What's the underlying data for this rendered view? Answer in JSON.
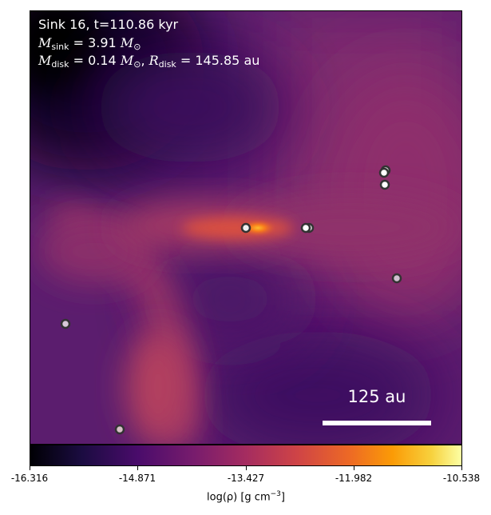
{
  "info": {
    "sink_line": "Sink 16, t=110.86 kyr",
    "msink_value": "3.91",
    "mdisk_value": "0.14",
    "rdisk_value": "145.85",
    "unit_au": "au"
  },
  "scale_bar": {
    "label": "125 au"
  },
  "colorbar": {
    "ticks": [
      "-16.316",
      "-14.871",
      "-13.427",
      "-11.982",
      "-10.538"
    ],
    "label": "log(ρ) [g cm",
    "label_exp": "−3",
    "label_end": "]"
  },
  "sinks_count": 9
}
